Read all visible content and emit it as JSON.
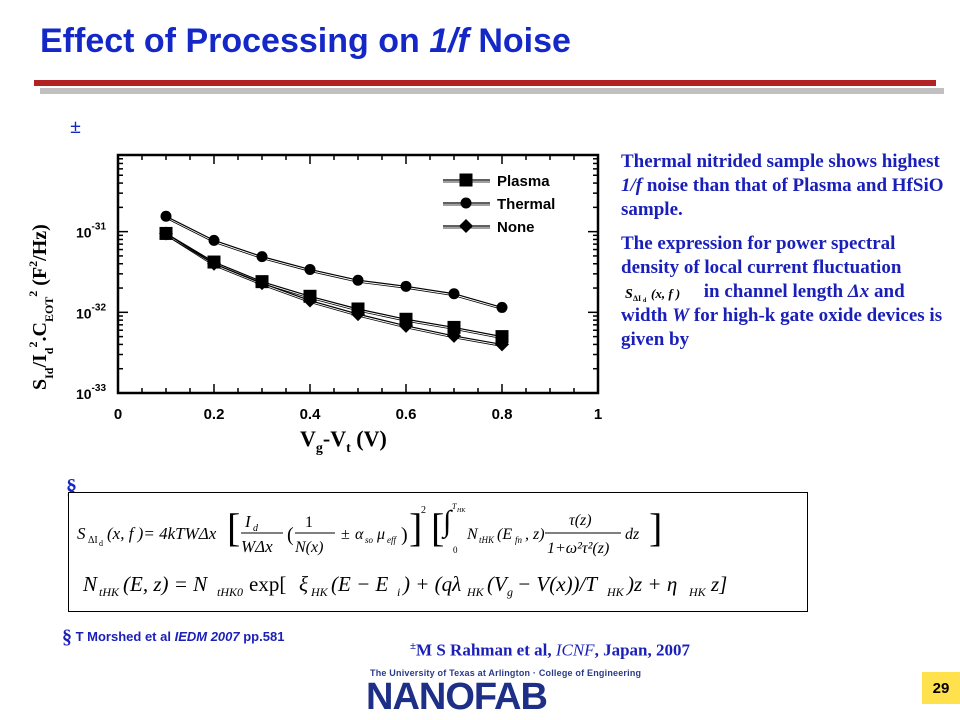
{
  "slide": {
    "title_prefix": "Effect of Processing on ",
    "title_italic": "1/f",
    "title_suffix": " Noise",
    "plusminus_mark": "±",
    "section_mark": "§",
    "page_number": "29"
  },
  "description": {
    "para1_a": "Thermal nitrided sample shows highest ",
    "para1_italic": "1/f",
    "para1_b": " noise than that of Plasma and HfSiO sample.",
    "para2_a": "The expression for power spectral density of local current fluctuation",
    "para2_b": " in channel length ",
    "para2_dx": "Δx",
    "para2_c": " and width ",
    "para2_w": "W",
    "para2_d": "  for high-k gate oxide devices is given by"
  },
  "references": {
    "ref1_mark": "§",
    "ref1_authors": " T Morshed et al ",
    "ref1_venue": "IEDM 2007",
    "ref1_pages": " pp.581",
    "ref2_mark": "±",
    "ref2_authors": "M S Rahman et al, ",
    "ref2_venue": "ICNF",
    "ref2_rest": ", Japan, 2007"
  },
  "logo": {
    "line1": "The University of Texas at Arlington · College of Engineering",
    "word": "NANOFAB"
  },
  "colors": {
    "title": "#1428c8",
    "body_text": "#1a1fb8",
    "rule": "#b22222",
    "page_badge": "#ffe14d"
  },
  "chart_data": {
    "type": "line",
    "xlabel": "Vg-Vt (V)",
    "ylabel": "SId/Id2.CEOT2 (F2/Hz)",
    "x_ticks": [
      "0",
      "0.2",
      "0.4",
      "0.6",
      "0.8",
      "1"
    ],
    "y_ticks": [
      "10-33",
      "10-32",
      "10-31"
    ],
    "xlim": [
      0,
      1
    ],
    "ylim_log10": [
      -33,
      -30.05
    ],
    "log_y": true,
    "legend_position": "top-right",
    "series": [
      {
        "name": "Plasma",
        "marker": "square",
        "x": [
          0.1,
          0.2,
          0.3,
          0.4,
          0.5,
          0.6,
          0.7,
          0.8
        ],
        "y": [
          9.5e-32,
          4.2e-32,
          2.4e-32,
          1.58e-32,
          1.1e-32,
          8.2e-33,
          6.5e-33,
          5e-33
        ]
      },
      {
        "name": "Thermal",
        "marker": "circle",
        "x": [
          0.1,
          0.2,
          0.3,
          0.4,
          0.5,
          0.6,
          0.7,
          0.8
        ],
        "y": [
          1.55e-31,
          7.8e-32,
          4.9e-32,
          3.4e-32,
          2.5e-32,
          2.1e-32,
          1.7e-32,
          1.15e-32
        ]
      },
      {
        "name": "None",
        "marker": "diamond",
        "x": [
          0.1,
          0.2,
          0.3,
          0.4,
          0.5,
          0.6,
          0.7,
          0.8
        ],
        "y": [
          9.5e-32,
          4e-32,
          2.3e-32,
          1.4e-32,
          9.5e-33,
          6.8e-33,
          5.1e-33,
          4e-33
        ]
      }
    ]
  }
}
